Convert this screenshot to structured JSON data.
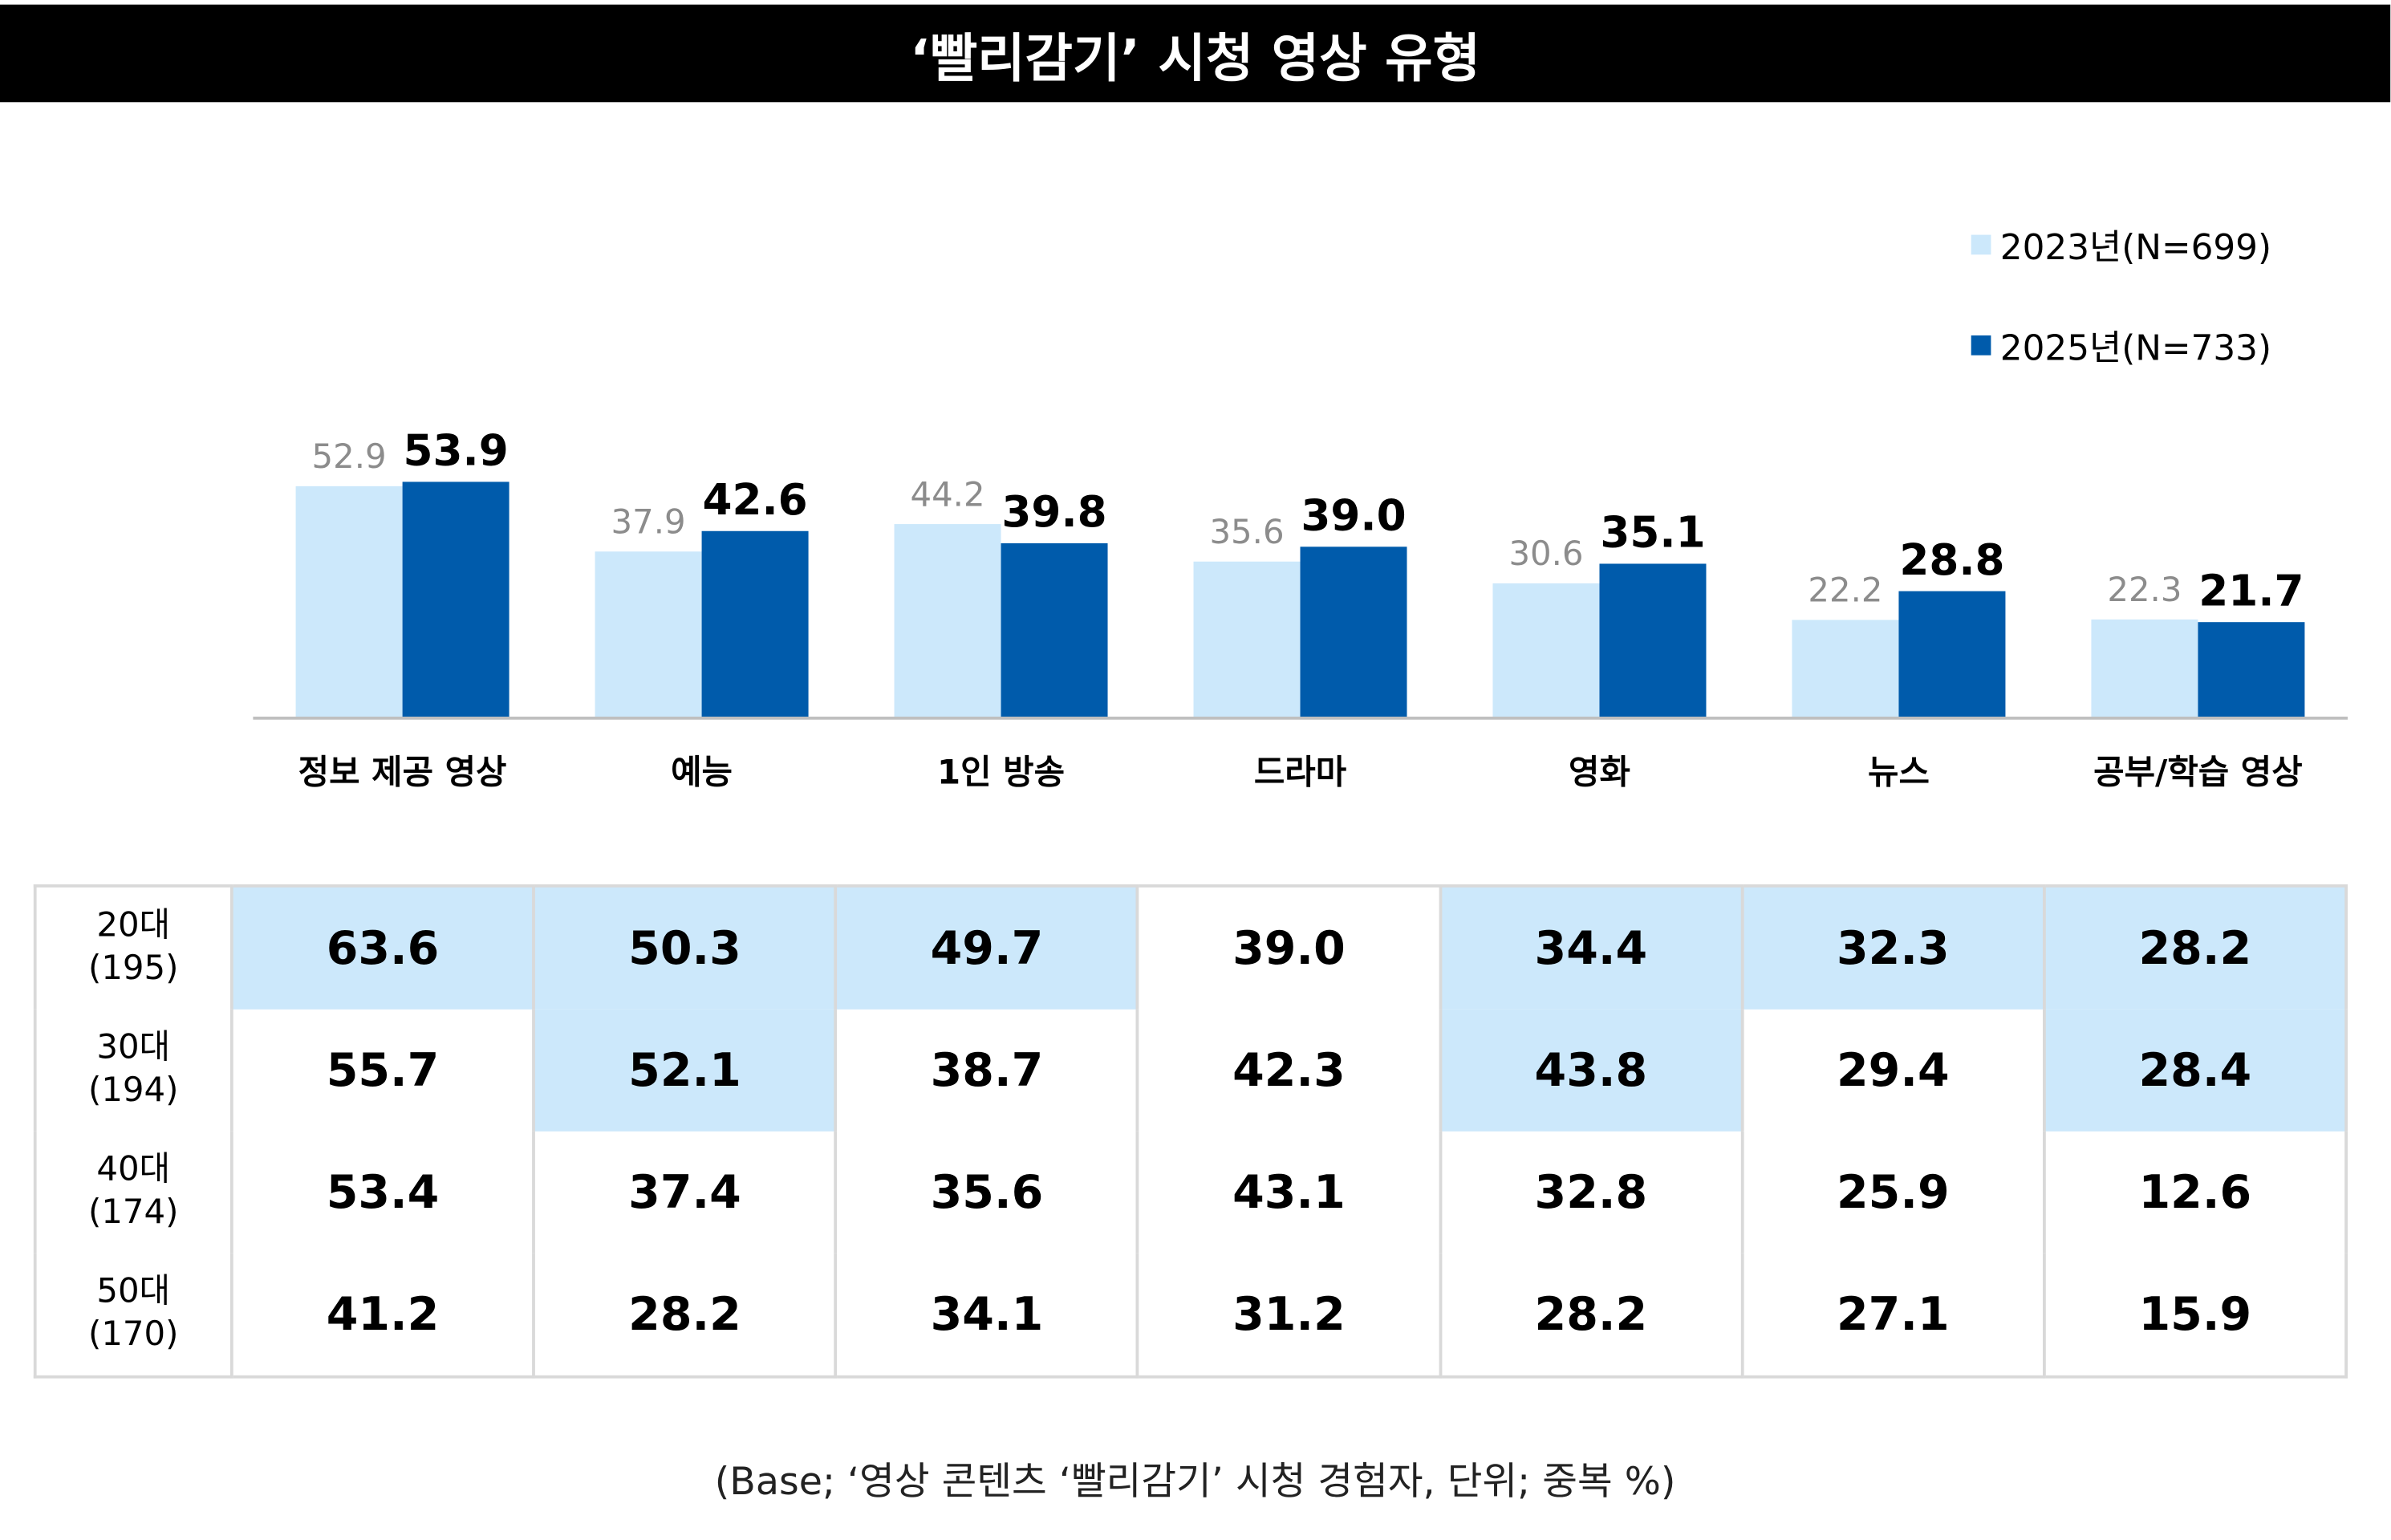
{
  "title": "‘빨리감기’ 시청 영상 유형",
  "colors": {
    "s2023": "#cce8fb",
    "s2025": "#005bab",
    "label2023": "#8c8c8c",
    "label2025": "#000000",
    "highlight": "#cce8fb"
  },
  "chart_data": {
    "type": "bar",
    "title": "‘빨리감기’ 시청 영상 유형",
    "categories": [
      "정보 제공 영상",
      "예능",
      "1인 방송",
      "드라마",
      "영화",
      "뉴스",
      "공부/학습 영상"
    ],
    "series": [
      {
        "name": "2023년(N=699)",
        "values": [
          52.9,
          37.9,
          44.2,
          35.6,
          30.6,
          22.2,
          22.3
        ],
        "labels": [
          "52.9",
          "37.9",
          "44.2",
          "35.6",
          "30.6",
          "22.2",
          "22.3"
        ]
      },
      {
        "name": "2025년(N=733)",
        "values": [
          53.9,
          42.6,
          39.8,
          39.0,
          35.1,
          28.8,
          21.7
        ],
        "labels": [
          "53.9",
          "42.6",
          "39.8",
          "39.0",
          "35.1",
          "28.8",
          "21.7"
        ]
      }
    ],
    "ylim": [
      0,
      60
    ],
    "legend": "top-right",
    "grid": false
  },
  "table": {
    "rows": [
      {
        "age": "20대",
        "n": "(195)",
        "values": [
          "63.6",
          "50.3",
          "49.7",
          "39.0",
          "34.4",
          "32.3",
          "28.2"
        ],
        "highlight": [
          true,
          true,
          true,
          false,
          true,
          true,
          true
        ]
      },
      {
        "age": "30대",
        "n": "(194)",
        "values": [
          "55.7",
          "52.1",
          "38.7",
          "42.3",
          "43.8",
          "29.4",
          "28.4"
        ],
        "highlight": [
          false,
          true,
          false,
          false,
          true,
          false,
          true
        ]
      },
      {
        "age": "40대",
        "n": "(174)",
        "values": [
          "53.4",
          "37.4",
          "35.6",
          "43.1",
          "32.8",
          "25.9",
          "12.6"
        ],
        "highlight": [
          false,
          false,
          false,
          false,
          false,
          false,
          false
        ]
      },
      {
        "age": "50대",
        "n": "(170)",
        "values": [
          "41.2",
          "28.2",
          "34.1",
          "31.2",
          "28.2",
          "27.1",
          "15.9"
        ],
        "highlight": [
          false,
          false,
          false,
          false,
          false,
          false,
          false
        ]
      }
    ]
  },
  "footer": "(Base; ‘영상 콘텐츠 ‘빨리감기’ 시청 경험자, 단위; 중복 %)"
}
